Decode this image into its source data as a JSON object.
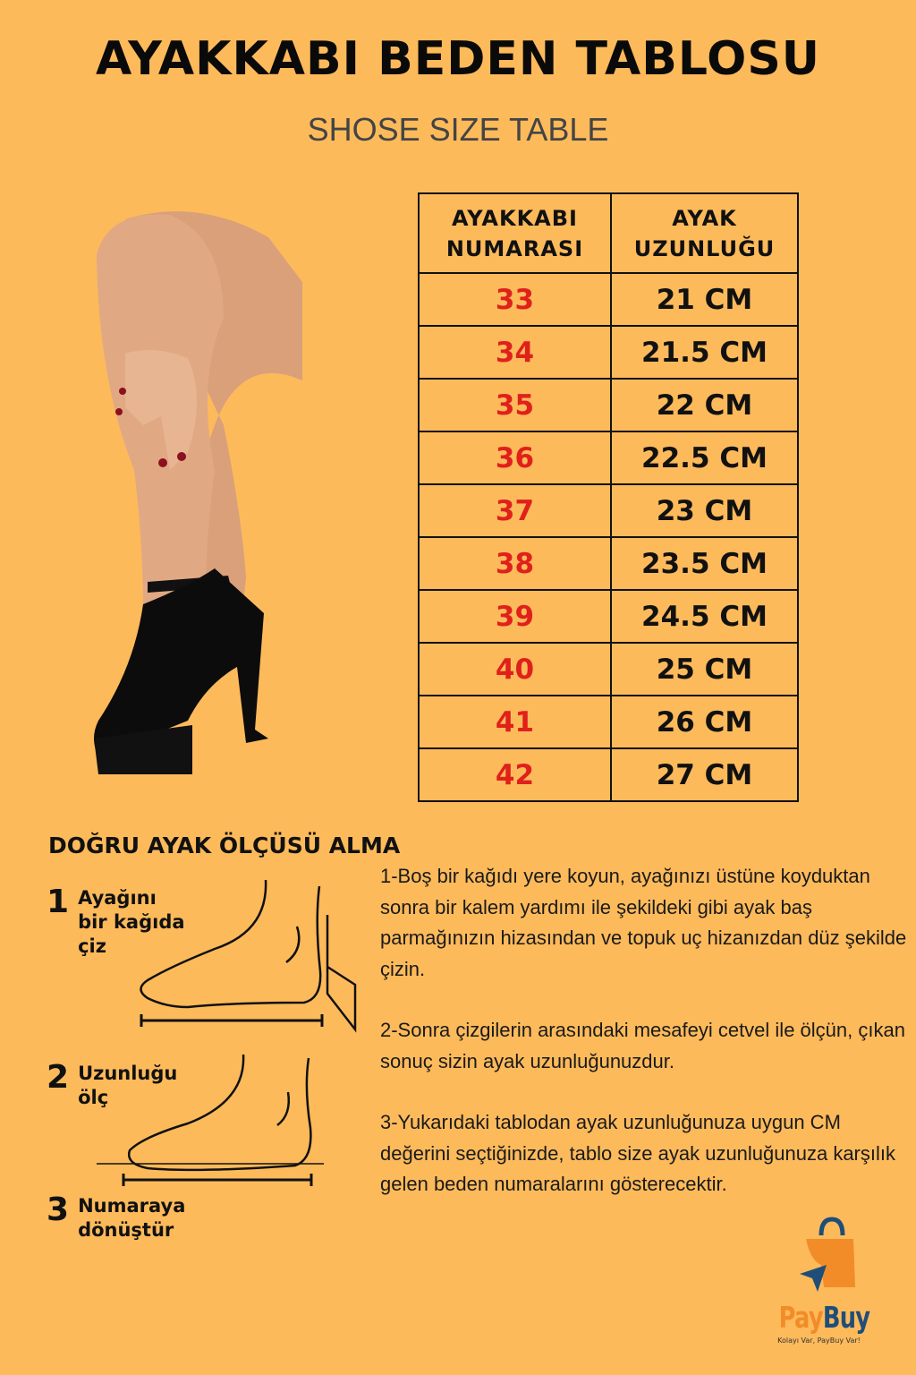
{
  "title": "AYAKKABI BEDEN TABLOSU",
  "subtitle": "SHOSE SIZE TABLE",
  "table": {
    "headers": [
      "AYAKKABI NUMARASI",
      "AYAK UZUNLUĞU"
    ],
    "rows": [
      [
        "33",
        "21 CM"
      ],
      [
        "34",
        "21.5 CM"
      ],
      [
        "35",
        "22 CM"
      ],
      [
        "36",
        "22.5 CM"
      ],
      [
        "37",
        "23 CM"
      ],
      [
        "38",
        "23.5 CM"
      ],
      [
        "39",
        "24.5 CM"
      ],
      [
        "40",
        "25 CM"
      ],
      [
        "41",
        "26 CM"
      ],
      [
        "42",
        "27 CM"
      ]
    ]
  },
  "guide": {
    "heading": "DOĞRU AYAK ÖLÇÜSÜ ALMA",
    "steps": [
      {
        "n": "1",
        "text": "Ayağını\nbir kağıda\nçiz"
      },
      {
        "n": "2",
        "text": "Uzunluğu\nölç"
      },
      {
        "n": "3",
        "text": "Numaraya\ndönüştür"
      }
    ]
  },
  "instructions": [
    "1-Boş bir kağıdı yere koyun, ayağınızı üstüne koyduktan sonra bir kalem yardımı ile şekildeki gibi ayak baş parmağınızın hizasından ve topuk uç hizanızdan düz şekilde çizin.",
    "2-Sonra çizgilerin arasındaki mesafeyi cetvel ile ölçün, çıkan sonuç sizin ayak uzunluğunuzdur.",
    "3-Yukarıdaki tablodan ayak uzunluğunuza uygun CM değerini seçtiğinizde, tablo size ayak uzunluğunuza karşılık gelen beden numaralarını gösterecektir."
  ],
  "logo": {
    "brand_part1": "Pay",
    "brand_part2": "Buy",
    "tagline": "Kolayı Var, PayBuy Var!",
    "colors": {
      "orange": "#F28C28",
      "navy": "#1F4E79"
    }
  },
  "colors": {
    "background": "#FDBA5B",
    "size_number": "#E0201B"
  }
}
